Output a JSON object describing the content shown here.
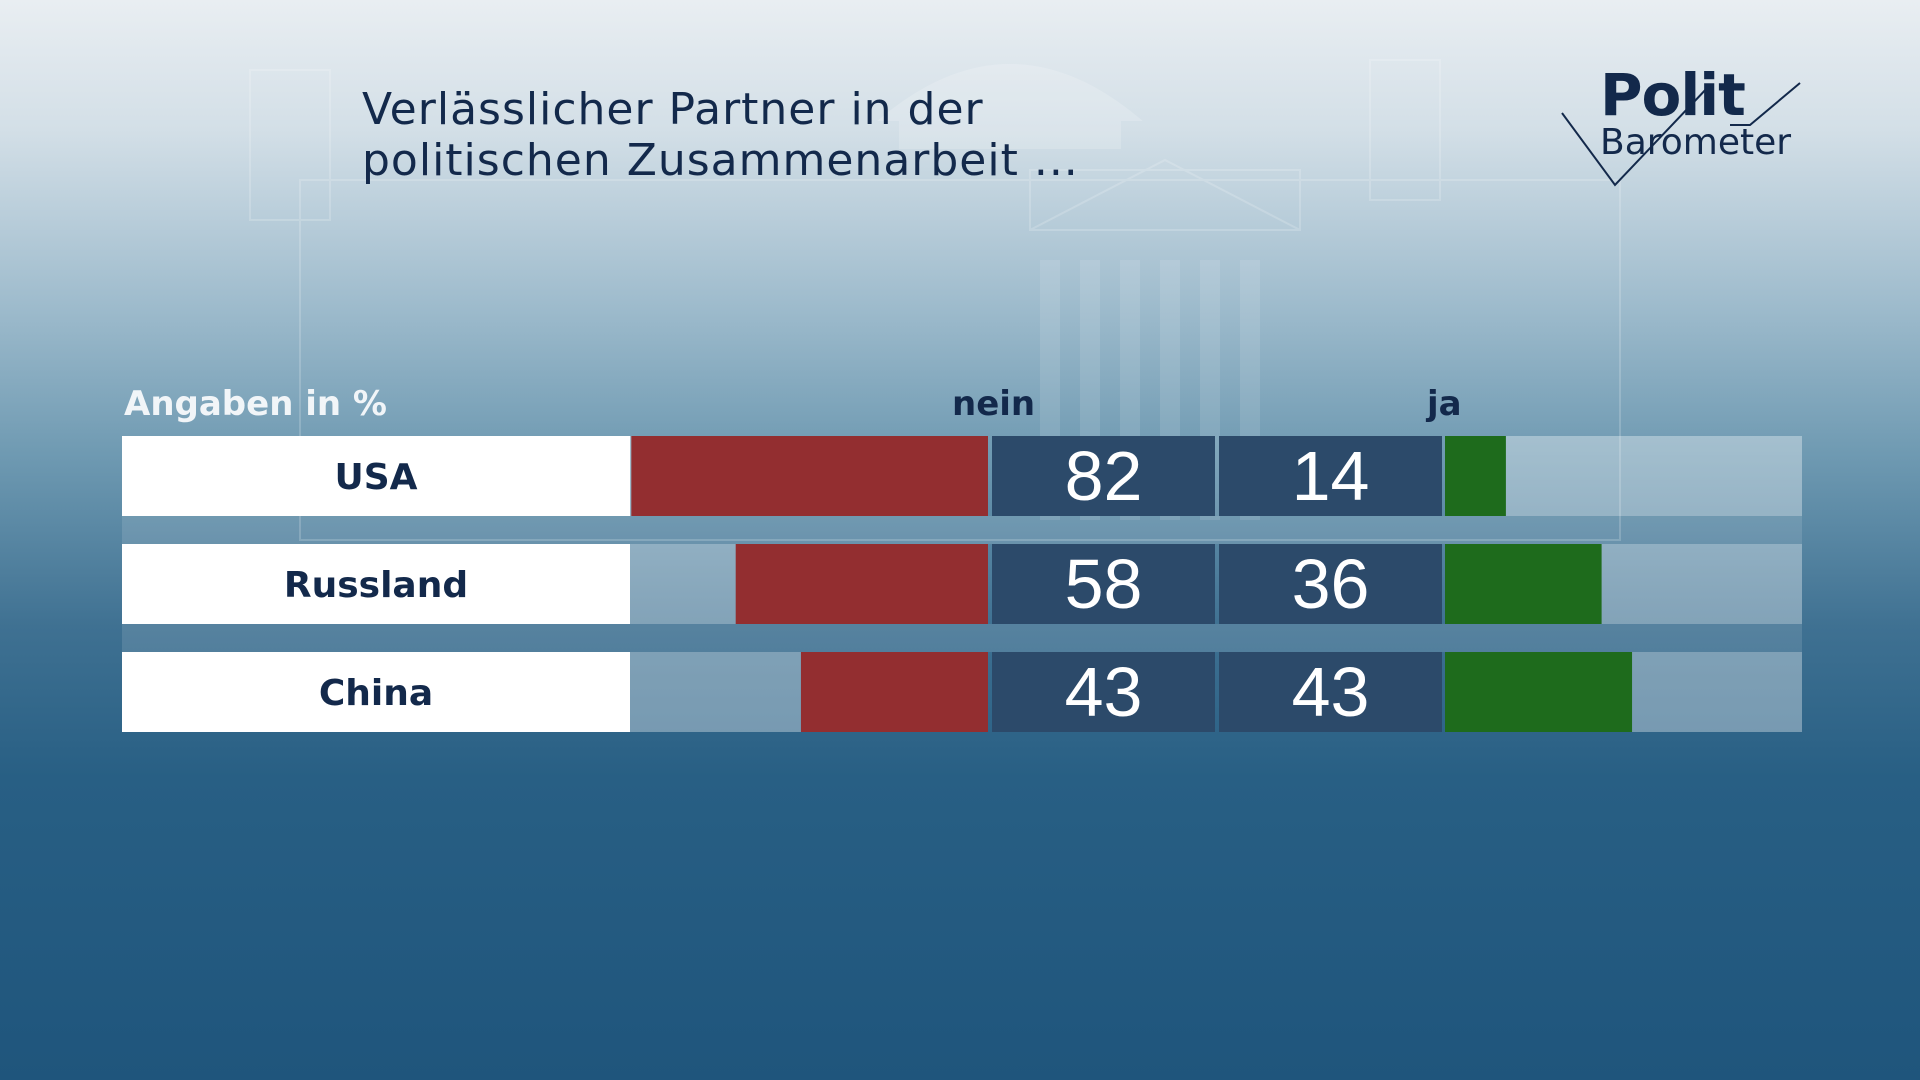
{
  "title_lines": [
    "Verlässlicher Partner in der",
    "politischen Zusammenarbeit ..."
  ],
  "logo": {
    "word1": "Polit",
    "word2": "Barometer"
  },
  "colors": {
    "nein": "#932e30",
    "ja": "#1e6b1c",
    "value_box": "#2c4a6a",
    "label_box": "#ffffff",
    "text_dark": "#13294b"
  },
  "chart_data": {
    "type": "bar",
    "orientation": "horizontal-diverging",
    "unit_label": "Angaben in %",
    "categories": [
      "USA",
      "Russland",
      "China"
    ],
    "series": [
      {
        "name": "nein",
        "values": [
          82,
          58,
          43
        ]
      },
      {
        "name": "ja",
        "values": [
          14,
          36,
          43
        ]
      }
    ],
    "xlim": [
      0,
      100
    ],
    "grid": false,
    "legend": "top"
  }
}
